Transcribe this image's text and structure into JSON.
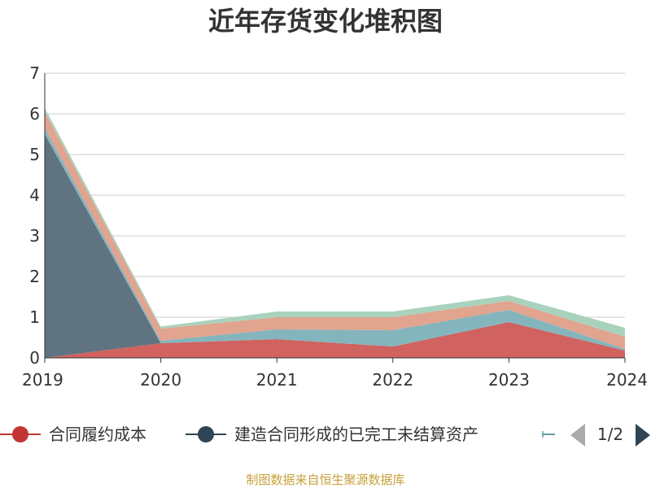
{
  "chart_data": {
    "type": "area",
    "stacked": true,
    "title": "近年存货变化堆积图",
    "ylabel": "",
    "x": [
      "2019",
      "2020",
      "2021",
      "2022",
      "2023",
      "2024"
    ],
    "ylim": [
      0,
      7
    ],
    "yticks": [
      "0",
      "1",
      "2",
      "3",
      "4",
      "5",
      "6",
      "7"
    ],
    "grid": true,
    "legend_position": "bottom",
    "series": [
      {
        "name": "合同履约成本",
        "color": "#d0625f",
        "values": [
          0.0,
          0.36,
          0.46,
          0.28,
          0.88,
          0.18
        ]
      },
      {
        "name": "建造合同形成的已完工未结算资产",
        "color": "#5f7381",
        "values": [
          5.5,
          0.0,
          0.0,
          0.0,
          0.0,
          0.0
        ]
      },
      {
        "name": "",
        "color": "#84b5bd",
        "values": [
          0.15,
          0.06,
          0.24,
          0.4,
          0.3,
          0.04
        ]
      },
      {
        "name": "",
        "color": "#e0a48f",
        "values": [
          0.4,
          0.3,
          0.3,
          0.32,
          0.22,
          0.3
        ]
      },
      {
        "name": "",
        "color": "#a8d2bd",
        "values": [
          0.1,
          0.05,
          0.14,
          0.14,
          0.14,
          0.22
        ]
      }
    ]
  },
  "legend": {
    "page": "1/2",
    "prev_icon": "triangle-left-icon",
    "next_icon": "triangle-right-icon",
    "marker_colors": [
      "#c23531",
      "#2f4554",
      "#61a0a8"
    ]
  },
  "source_text": "制图数据来自恒生聚源数据库"
}
